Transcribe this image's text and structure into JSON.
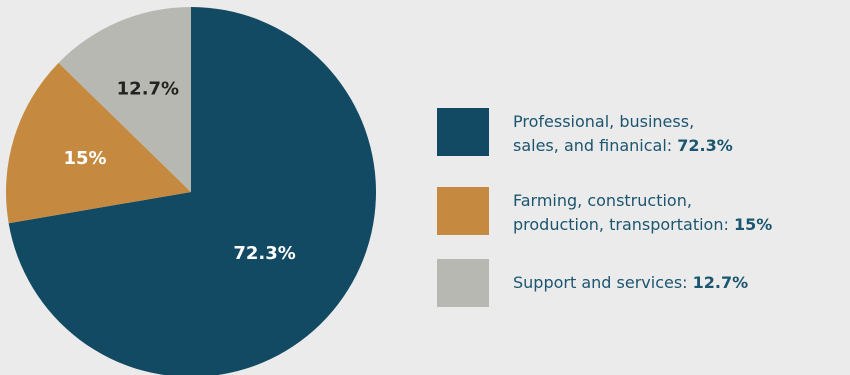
{
  "chart_data": {
    "type": "pie",
    "title": "",
    "start_angle": "12 o'clock",
    "direction": "clockwise",
    "slices": [
      {
        "label_lines": [
          "Professional, business,",
          "sales, and finanical"
        ],
        "value": 72.3,
        "value_label": "72.3%",
        "color": "#124a63",
        "label_color": "#ffffff"
      },
      {
        "label_lines": [
          "Farming, construction,",
          "production, transportation"
        ],
        "value": 15,
        "value_label": "15%",
        "color": "#c58a40",
        "label_color": "#ffffff"
      },
      {
        "label_lines": [
          "Support and services"
        ],
        "value": 12.7,
        "value_label": "12.7%",
        "color": "#b8b8b3",
        "label_color": "#222222"
      }
    ],
    "legend_position": "right",
    "legend_text_color": "#1c5570",
    "background": "#ebebeb"
  }
}
